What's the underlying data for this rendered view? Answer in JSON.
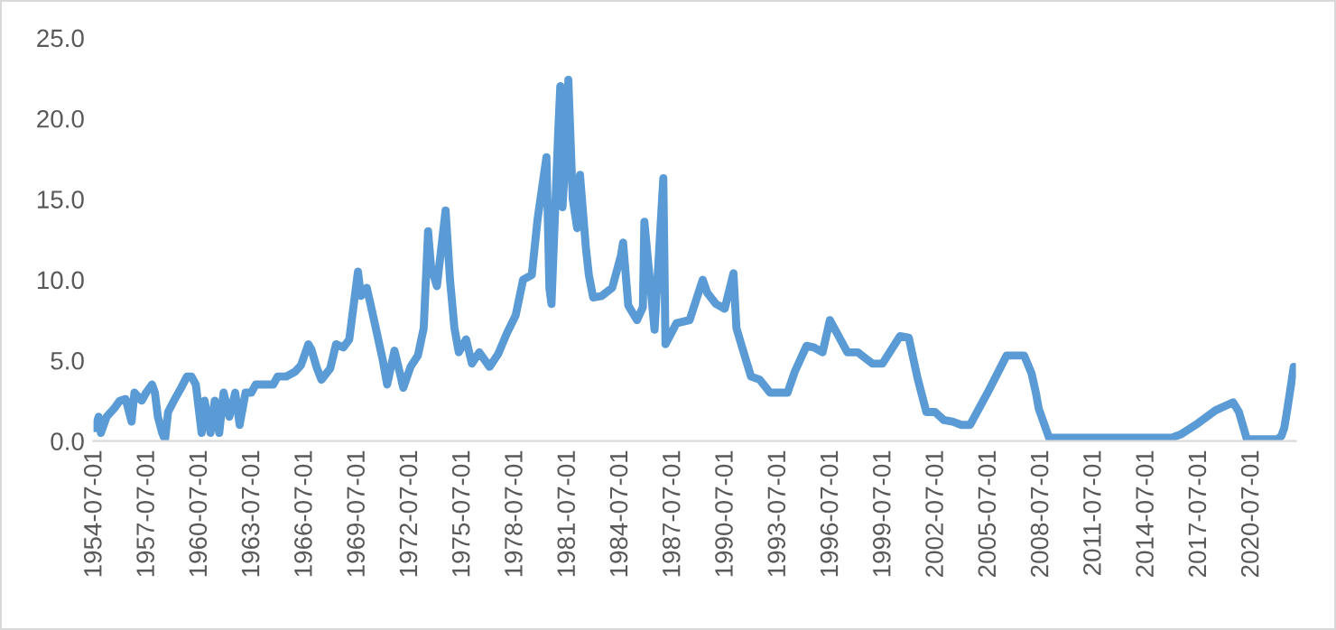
{
  "chart_data": {
    "type": "line",
    "color": "#5b9bd5",
    "grid": false,
    "marker": "none",
    "line_style": "solid",
    "x": [
      "1954-07-01",
      "1954-09-15",
      "1954-11-01",
      "1955-03-01",
      "1955-08-01",
      "1955-12-01",
      "1956-04-01",
      "1956-08-01",
      "1956-10-01",
      "1957-03-01",
      "1957-06-01",
      "1957-10-01",
      "1957-12-01",
      "1958-02-01",
      "1958-05-01",
      "1958-07-01",
      "1958-09-01",
      "1959-01-01",
      "1959-06-01",
      "1959-10-01",
      "1960-01-01",
      "1960-04-01",
      "1960-06-01",
      "1960-08-01",
      "1960-10-01",
      "1961-02-01",
      "1961-05-01",
      "1961-08-01",
      "1961-11-01",
      "1962-03-01",
      "1962-07-01",
      "1962-10-01",
      "1963-02-01",
      "1963-06-01",
      "1963-09-01",
      "1964-03-01",
      "1964-09-01",
      "1964-12-01",
      "1965-06-01",
      "1965-12-01",
      "1966-04-01",
      "1966-09-01",
      "1966-11-01",
      "1967-03-01",
      "1967-06-01",
      "1967-12-01",
      "1968-04-01",
      "1968-09-01",
      "1969-01-01",
      "1969-07-01",
      "1969-09-01",
      "1970-01-01",
      "1970-06-01",
      "1970-12-01",
      "1971-03-01",
      "1971-08-01",
      "1971-12-01",
      "1972-02-01",
      "1972-07-01",
      "1972-12-01",
      "1973-04-01",
      "1973-07-01",
      "1973-09-01",
      "1974-01-01",
      "1974-07-01",
      "1974-10-01",
      "1975-01-01",
      "1975-04-01",
      "1975-09-01",
      "1976-01-01",
      "1976-06-01",
      "1977-01-01",
      "1977-07-01",
      "1978-01-01",
      "1978-07-01",
      "1978-12-01",
      "1979-06-01",
      "1979-10-01",
      "1980-04-01",
      "1980-06-01",
      "1980-07-15",
      "1980-12-01",
      "1981-01-15",
      "1981-03-01",
      "1981-06-01",
      "1981-07-01",
      "1981-10-01",
      "1982-01-01",
      "1982-03-01",
      "1982-07-01",
      "1982-09-01",
      "1982-12-01",
      "1983-06-01",
      "1984-01-01",
      "1984-07-01",
      "1984-08-15",
      "1984-12-01",
      "1985-06-01",
      "1985-10-01",
      "1985-11-01",
      "1986-06-01",
      "1986-12-01",
      "1987-01-15",
      "1987-09-01",
      "1988-06-01",
      "1989-03-01",
      "1989-06-01",
      "1989-12-01",
      "1990-06-01",
      "1990-12-01",
      "1991-02-01",
      "1991-06-01",
      "1991-12-01",
      "1992-06-01",
      "1993-01-01",
      "1993-06-01",
      "1994-01-01",
      "1994-06-01",
      "1995-02-01",
      "1995-07-01",
      "1996-01-01",
      "1996-06-01",
      "1997-06-01",
      "1998-01-01",
      "1998-11-01",
      "1999-06-01",
      "2000-06-01",
      "2000-12-01",
      "2001-06-01",
      "2001-12-01",
      "2002-06-01",
      "2002-12-01",
      "2003-06-01",
      "2003-12-01",
      "2004-06-01",
      "2005-06-01",
      "2006-07-01",
      "2007-07-01",
      "2007-12-01",
      "2008-03-01",
      "2008-05-01",
      "2008-12-01",
      "2012-01-01",
      "2015-12-01",
      "2016-06-01",
      "2017-06-01",
      "2018-06-01",
      "2019-06-01",
      "2019-10-01",
      "2020-03-15",
      "2021-12-01",
      "2022-03-01",
      "2022-05-01",
      "2022-06-15",
      "2022-09-01",
      "2022-11-15"
    ],
    "values": [
      0.8,
      1.5,
      0.5,
      1.5,
      2.0,
      2.5,
      2.6,
      1.2,
      3.0,
      2.5,
      3.0,
      3.5,
      3.0,
      1.5,
      0.5,
      0.1,
      1.8,
      2.5,
      3.3,
      4.0,
      4.0,
      3.5,
      2.0,
      0.5,
      2.5,
      0.5,
      2.5,
      0.5,
      3.0,
      1.5,
      3.0,
      1.0,
      3.0,
      3.0,
      3.5,
      3.5,
      3.5,
      4.0,
      4.0,
      4.3,
      4.7,
      6.0,
      5.7,
      4.5,
      3.8,
      4.5,
      6.0,
      5.8,
      6.3,
      10.5,
      9.0,
      9.5,
      7.5,
      5.0,
      3.5,
      5.6,
      4.1,
      3.3,
      4.6,
      5.3,
      7.0,
      13.0,
      10.8,
      9.6,
      14.3,
      10.0,
      7.0,
      5.5,
      6.3,
      4.8,
      5.5,
      4.6,
      5.4,
      6.7,
      7.8,
      10.0,
      10.3,
      13.8,
      17.6,
      9.5,
      8.5,
      19.1,
      22.0,
      14.5,
      19.1,
      22.4,
      15.0,
      13.2,
      16.5,
      12.0,
      10.3,
      8.9,
      9.0,
      9.5,
      11.5,
      12.3,
      8.4,
      7.5,
      8.3,
      13.6,
      6.9,
      16.3,
      6.0,
      7.3,
      7.5,
      10.0,
      9.2,
      8.5,
      8.2,
      10.4,
      7.0,
      5.8,
      4.0,
      3.8,
      3.0,
      3.0,
      3.0,
      4.3,
      5.9,
      5.8,
      5.5,
      7.5,
      5.5,
      5.5,
      4.8,
      4.8,
      6.5,
      6.4,
      3.9,
      1.8,
      1.8,
      1.3,
      1.2,
      1.0,
      1.0,
      3.0,
      5.3,
      5.3,
      4.2,
      3.0,
      2.0,
      0.2,
      0.2,
      0.2,
      0.4,
      1.1,
      1.9,
      2.4,
      1.8,
      0.1,
      0.1,
      0.3,
      0.8,
      1.6,
      3.1,
      4.6
    ],
    "xlim": [
      "1954-06-01",
      "2022-12-31"
    ],
    "xticks": [
      {
        "value": "1954-07-01",
        "label": "1954-07-01"
      },
      {
        "value": "1957-07-01",
        "label": "1957-07-01"
      },
      {
        "value": "1960-07-01",
        "label": "1960-07-01"
      },
      {
        "value": "1963-07-01",
        "label": "1963-07-01"
      },
      {
        "value": "1966-07-01",
        "label": "1966-07-01"
      },
      {
        "value": "1969-07-01",
        "label": "1969-07-01"
      },
      {
        "value": "1972-07-01",
        "label": "1972-07-01"
      },
      {
        "value": "1975-07-01",
        "label": "1975-07-01"
      },
      {
        "value": "1978-07-01",
        "label": "1978-07-01"
      },
      {
        "value": "1981-07-01",
        "label": "1981-07-01"
      },
      {
        "value": "1984-07-01",
        "label": "1984-07-01"
      },
      {
        "value": "1987-07-01",
        "label": "1987-07-01"
      },
      {
        "value": "1990-07-01",
        "label": "1990-07-01"
      },
      {
        "value": "1993-07-01",
        "label": "1993-07-01"
      },
      {
        "value": "1996-07-01",
        "label": "1996-07-01"
      },
      {
        "value": "1999-07-01",
        "label": "1999-07-01"
      },
      {
        "value": "2002-07-01",
        "label": "2002-07-01"
      },
      {
        "value": "2005-07-01",
        "label": "2005-07-01"
      },
      {
        "value": "2008-07-01",
        "label": "2008-07-01"
      },
      {
        "value": "2011-07-01",
        "label": "2011-07-01"
      },
      {
        "value": "2014-07-01",
        "label": "2014-07-01"
      },
      {
        "value": "2017-07-01",
        "label": "2017-07-01"
      },
      {
        "value": "2020-07-01",
        "label": "2020-07-01"
      }
    ],
    "ylim": [
      0,
      25
    ],
    "yticks": [
      {
        "value": 0,
        "label": "0.0"
      },
      {
        "value": 5,
        "label": "5.0"
      },
      {
        "value": 10,
        "label": "10.0"
      },
      {
        "value": 15,
        "label": "15.0"
      },
      {
        "value": 20,
        "label": "20.0"
      },
      {
        "value": 25,
        "label": "25.0"
      }
    ]
  }
}
